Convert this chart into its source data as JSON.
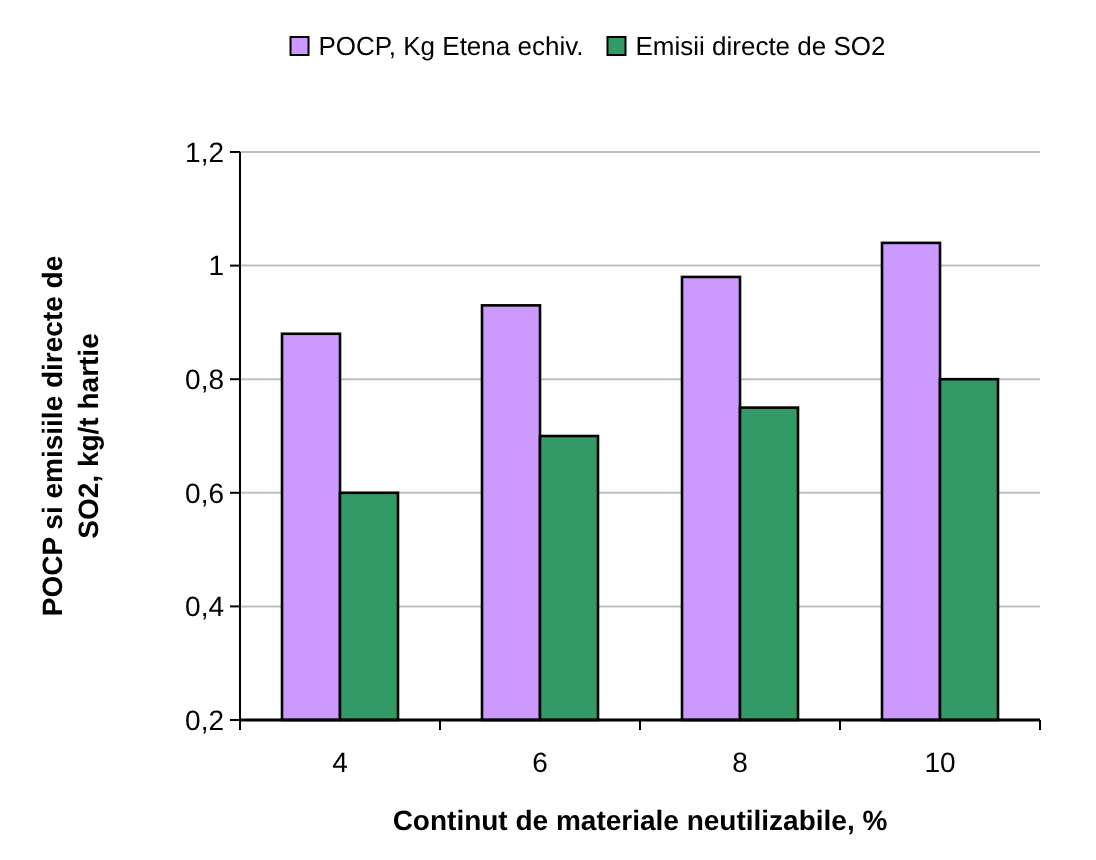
{
  "chart_data": {
    "type": "bar",
    "categories": [
      "4",
      "6",
      "8",
      "10"
    ],
    "series": [
      {
        "name": "POCP, Kg Etena echiv.",
        "color": "#cc99ff",
        "values": [
          0.88,
          0.93,
          0.98,
          1.04
        ]
      },
      {
        "name": "Emisii directe de SO2",
        "color": "#339966",
        "values": [
          0.6,
          0.7,
          0.75,
          0.8
        ]
      }
    ],
    "xlabel": "Continut de materiale neutilizabile, %",
    "ylabel": "POCP si emisiile directe de SO2, kg/t hartie",
    "ylim": [
      0.2,
      1.2
    ],
    "yticks": [
      {
        "value": 0.2,
        "label": "0,2"
      },
      {
        "value": 0.4,
        "label": "0,4"
      },
      {
        "value": 0.6,
        "label": "0,6"
      },
      {
        "value": 0.8,
        "label": "0,8"
      },
      1,
      {
        "value": 1.2,
        "label": "1,2"
      }
    ],
    "grid": "y",
    "legend": "top"
  }
}
